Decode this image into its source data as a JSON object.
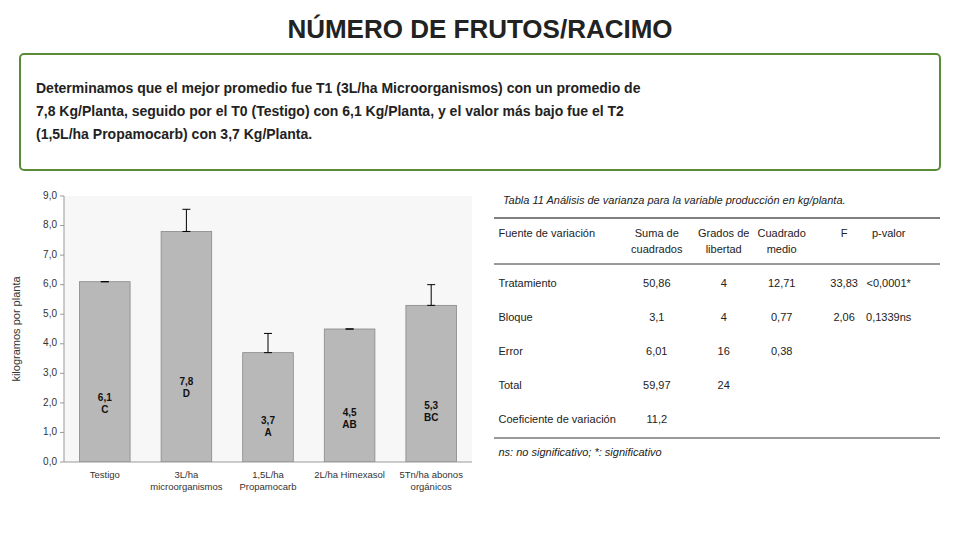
{
  "chart_data": {
    "type": "bar",
    "title": "NÚMERO DE FRUTOS/RACIMO",
    "description": "Determinamos que el mejor promedio fue T1 (3L/ha Microorganismos) con un promedio de\n7,8 Kg/Planta, seguido por el T0 (Testigo) con 6,1 Kg/Planta, y el valor más bajo fue el T2\n(1,5L/ha Propamocarb) con 3,7 Kg/Planta.",
    "categories": [
      "Testigo",
      "3L/ha\nmicroorganismos",
      "1,5L/ha\nPropamocarb",
      "2L/ha Himexasol",
      "5Tn/ha abonos\norgánicos"
    ],
    "values": [
      6.1,
      7.8,
      3.7,
      4.5,
      5.3
    ],
    "value_labels": [
      "6,1\nC",
      "7,8\nD",
      "3,7\nA",
      "4,5\nAB",
      "5,3\nBC"
    ],
    "errors_upper": [
      0.0,
      0.75,
      0.65,
      0.0,
      0.7
    ],
    "errors_lower": [
      0.0,
      0.0,
      0.0,
      0.0,
      0.0
    ],
    "color": "#b8b8b8",
    "ylabel": "kilogramos por planta",
    "ylim": [
      0,
      9.0
    ],
    "yticks": [
      {
        "value": 0.0,
        "label": "0,0"
      },
      {
        "value": 1.0,
        "label": "1,0"
      },
      {
        "value": 2.0,
        "label": "2,0"
      },
      {
        "value": 3.0,
        "label": "3,0"
      },
      {
        "value": 4.0,
        "label": "4,0"
      },
      {
        "value": 5.0,
        "label": "5,0"
      },
      {
        "value": 6.0,
        "label": "6,0"
      },
      {
        "value": 7.0,
        "label": "7,0"
      },
      {
        "value": 8.0,
        "label": "8,0"
      },
      {
        "value": 9.0,
        "label": "9,0"
      }
    ],
    "grid": false,
    "data_labels": true,
    "table": {
      "title": "Tabla 11 Análisis de varianza para la variable producción en kg/planta.",
      "columns": [
        "Fuente de variación",
        "Suma de\ncuadrados",
        "Grados de\nlibertad",
        "Cuadrado\nmedio",
        "F",
        "p-valor"
      ],
      "rows": [
        [
          "Tratamiento",
          "50,86",
          "4",
          "12,71",
          "33,83",
          "<0,0001*"
        ],
        [
          "Bloque",
          "3,1",
          "4",
          "0,77",
          "2,06",
          "0,1339ns"
        ],
        [
          "Error",
          "6,01",
          "16",
          "0,38",
          null,
          null
        ],
        [
          "Total",
          "59,97",
          "24",
          null,
          null,
          null
        ],
        [
          "Coeficiente de variación",
          "11,2",
          null,
          null,
          null,
          null
        ]
      ],
      "note": "ns: no significativo; *: significativo"
    }
  }
}
